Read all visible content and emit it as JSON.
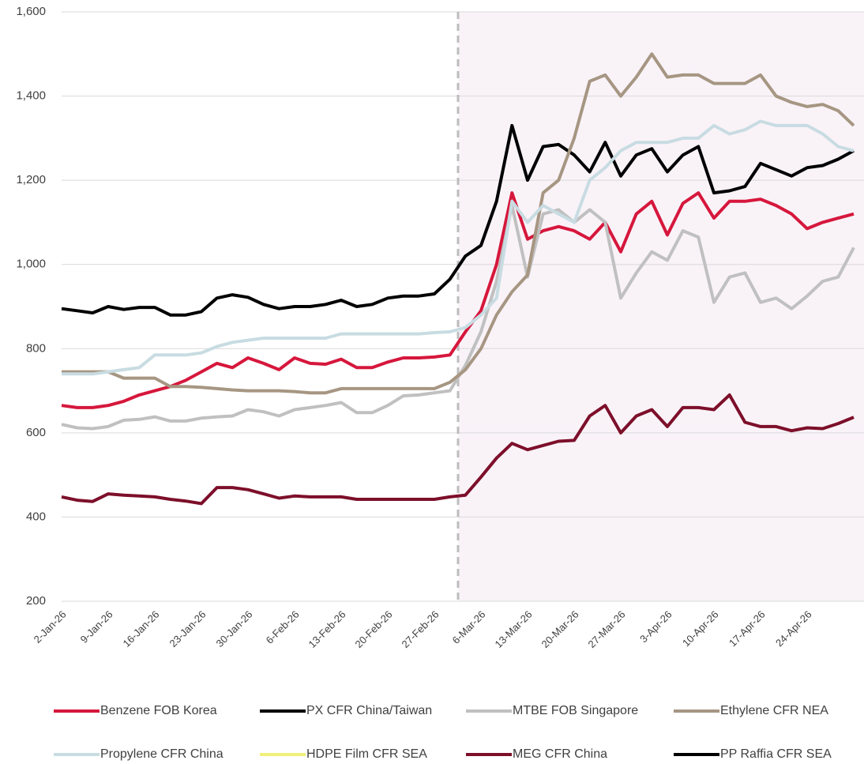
{
  "chart_data": {
    "type": "line",
    "categories": [
      "2-Jan-26",
      null,
      null,
      "9-Jan-26",
      null,
      null,
      "16-Jan-26",
      null,
      null,
      "23-Jan-26",
      null,
      null,
      "30-Jan-26",
      null,
      null,
      "6-Feb-26",
      null,
      null,
      "13-Feb-26",
      null,
      null,
      "20-Feb-26",
      null,
      null,
      "27-Feb-26",
      null,
      null,
      "6-Mar-26",
      null,
      null,
      "13-Mar-26",
      null,
      null,
      "20-Mar-26",
      null,
      null,
      "27-Mar-26",
      null,
      null,
      "3-Apr-26",
      null,
      null,
      "10-Apr-26",
      null,
      null,
      "17-Apr-26",
      null,
      null,
      "24-Apr-26",
      null,
      null,
      null
    ],
    "series": [
      {
        "name": "Benzene FOB Korea",
        "color": "#d6173c",
        "values": [
          665,
          660,
          660,
          665,
          675,
          690,
          700,
          710,
          725,
          745,
          765,
          755,
          778,
          765,
          750,
          778,
          765,
          763,
          775,
          755,
          755,
          768,
          778,
          778,
          780,
          785,
          840,
          890,
          1000,
          1170,
          1060,
          1080,
          1090,
          1080,
          1060,
          1100,
          1030,
          1120,
          1150,
          1070,
          1145,
          1170,
          1110,
          1150,
          1150,
          1155,
          1140,
          1120,
          1085,
          1100,
          1110,
          1120
        ]
      },
      {
        "name": "PX CFR China/Taiwan",
        "color": "#000000",
        "values": [
          895,
          890,
          885,
          900,
          893,
          898,
          898,
          880,
          880,
          888,
          920,
          928,
          922,
          905,
          895,
          900,
          900,
          905,
          915,
          900,
          905,
          920,
          925,
          925,
          930,
          965,
          1020,
          1045,
          1150,
          1330,
          1200,
          1280,
          1285,
          1260,
          1220,
          1290,
          1210,
          1260,
          1275,
          1220,
          1260,
          1280,
          1170,
          1175,
          1185,
          1240,
          1225,
          1210,
          1230,
          1235,
          1250,
          1270
        ]
      },
      {
        "name": "MTBE FOB Singapore",
        "color": "#c0c0c0",
        "values": [
          620,
          612,
          610,
          615,
          630,
          632,
          638,
          628,
          628,
          635,
          638,
          640,
          655,
          650,
          640,
          655,
          660,
          665,
          672,
          648,
          648,
          665,
          688,
          690,
          695,
          700,
          760,
          840,
          960,
          1140,
          970,
          1120,
          1130,
          1100,
          1130,
          1100,
          920,
          980,
          1030,
          1010,
          1080,
          1065,
          910,
          970,
          980,
          910,
          920,
          895,
          925,
          960,
          970,
          1040
        ]
      },
      {
        "name": "Ethylene CFR NEA",
        "color": "#a69682",
        "values": [
          745,
          745,
          745,
          745,
          730,
          730,
          730,
          710,
          710,
          708,
          705,
          702,
          700,
          700,
          700,
          698,
          695,
          695,
          705,
          705,
          705,
          705,
          705,
          705,
          705,
          720,
          750,
          800,
          880,
          935,
          975,
          1170,
          1200,
          1300,
          1435,
          1450,
          1400,
          1445,
          1500,
          1445,
          1450,
          1450,
          1430,
          1430,
          1430,
          1450,
          1400,
          1385,
          1375,
          1380,
          1365,
          1330
        ]
      },
      {
        "name": "Propylene CFR China",
        "color": "#c8dce2",
        "values": [
          740,
          740,
          740,
          745,
          750,
          755,
          785,
          785,
          785,
          790,
          805,
          815,
          820,
          825,
          825,
          825,
          825,
          825,
          835,
          835,
          835,
          835,
          835,
          835,
          838,
          840,
          850,
          880,
          920,
          1150,
          1100,
          1140,
          1120,
          1100,
          1200,
          1230,
          1270,
          1290,
          1290,
          1290,
          1300,
          1300,
          1330,
          1310,
          1320,
          1340,
          1330,
          1330,
          1330,
          1310,
          1280,
          1270
        ]
      },
      {
        "name": "HDPE Film CFR SEA",
        "color": "#f0f07a",
        "values": [
          null,
          null,
          null,
          null,
          null,
          null,
          null,
          null,
          null,
          null,
          null,
          null,
          null,
          null,
          null,
          null,
          null,
          null,
          null,
          null,
          null,
          null,
          null,
          null,
          null,
          null,
          null,
          null,
          null,
          null,
          null,
          null,
          null,
          null,
          null,
          null,
          null,
          null,
          null,
          null,
          null,
          null,
          null,
          null,
          null,
          null,
          null,
          null,
          null,
          null,
          null,
          null
        ]
      },
      {
        "name": "MEG CFR China",
        "color": "#7d0f2a",
        "values": [
          448,
          440,
          437,
          455,
          452,
          450,
          448,
          442,
          438,
          432,
          470,
          470,
          465,
          455,
          445,
          450,
          448,
          448,
          448,
          442,
          442,
          442,
          442,
          442,
          442,
          448,
          452,
          495,
          540,
          575,
          560,
          570,
          580,
          582,
          640,
          665,
          600,
          640,
          655,
          615,
          660,
          660,
          655,
          690,
          625,
          615,
          615,
          605,
          612,
          610,
          622,
          637
        ]
      },
      {
        "name": "PP Raffia CFR SEA",
        "color": "#000000",
        "values": [
          null,
          null,
          null,
          null,
          null,
          null,
          null,
          null,
          null,
          null,
          null,
          null,
          null,
          null,
          null,
          null,
          null,
          null,
          null,
          null,
          null,
          null,
          null,
          null,
          null,
          null,
          null,
          null,
          null,
          null,
          null,
          null,
          null,
          null,
          null,
          null,
          null,
          null,
          null,
          null,
          null,
          null,
          null,
          null,
          null,
          null,
          null,
          null,
          null,
          null,
          null,
          null
        ]
      }
    ],
    "ylim": [
      200,
      1600
    ],
    "yticks": [
      200,
      400,
      600,
      800,
      {
        "value": 1000,
        "label": "1,000"
      },
      {
        "value": 1200,
        "label": "1,200"
      },
      {
        "value": 1400,
        "label": "1,400"
      },
      {
        "value": 1600,
        "label": "1,600"
      }
    ],
    "grid": true
  }
}
